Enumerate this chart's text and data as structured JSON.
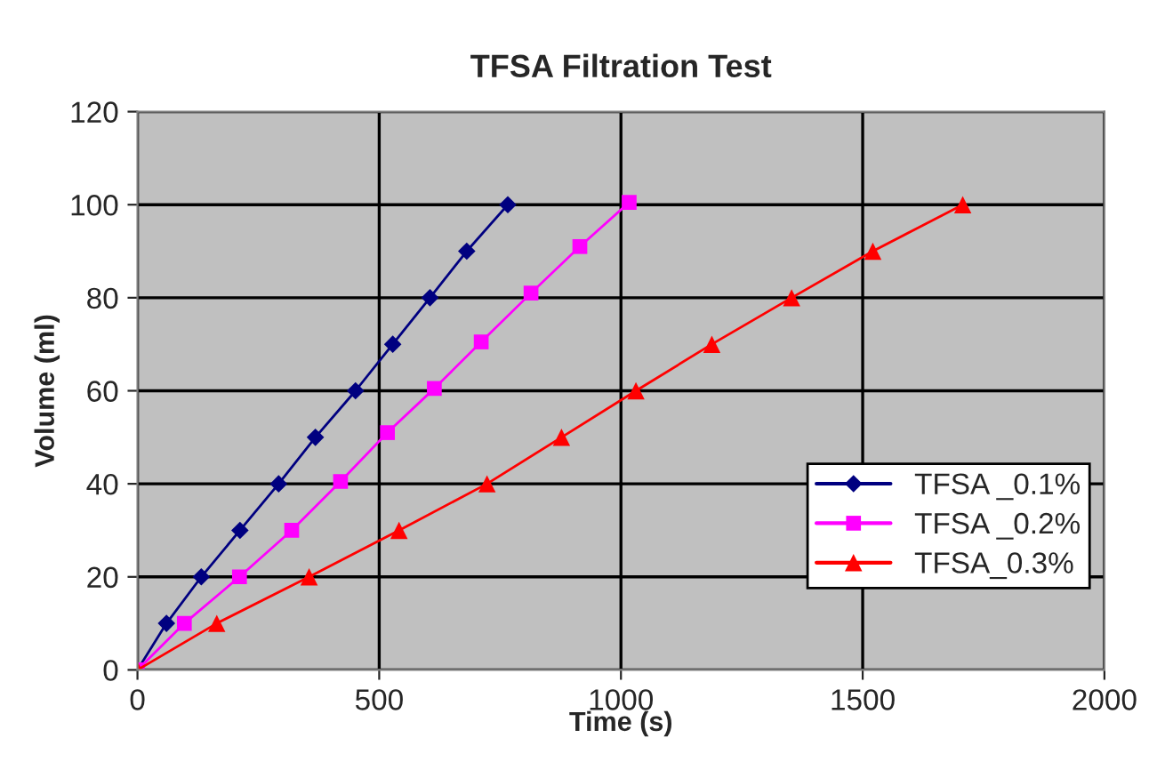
{
  "chart_data": {
    "type": "line",
    "title": "TFSA Filtration Test",
    "xlabel": "Time (s)",
    "ylabel": "Volume (ml)",
    "xlim": [
      0,
      2000
    ],
    "xticks": [
      0,
      500,
      1000,
      1500,
      2000
    ],
    "ylim": [
      0,
      120
    ],
    "yticks": [
      0,
      20,
      40,
      60,
      80,
      100,
      120
    ],
    "grid": true,
    "legend": "right",
    "series": [
      {
        "name": "TFSA _0.1%",
        "color": "#000080",
        "marker": "diamond",
        "x": [
          0,
          60,
          132,
          212,
          292,
          368,
          451,
          528,
          605,
          681,
          766
        ],
        "values": [
          0,
          10,
          20,
          30,
          40,
          50,
          60,
          70,
          80,
          90,
          100
        ]
      },
      {
        "name": "TFSA _0.2%",
        "color": "#ff00ff",
        "marker": "square",
        "x": [
          0,
          97,
          211,
          319,
          420,
          517,
          614,
          711,
          814,
          915,
          1017
        ],
        "values": [
          0,
          10,
          20,
          30,
          40.5,
          51,
          60.5,
          70.5,
          81,
          91,
          100.5
        ]
      },
      {
        "name": "TFSA_0.3%",
        "color": "#ff0000",
        "marker": "triangle",
        "x": [
          0,
          164,
          355,
          541,
          723,
          877,
          1031,
          1188,
          1353,
          1521,
          1707
        ],
        "values": [
          0,
          10,
          20,
          30,
          40,
          50,
          60,
          70,
          80,
          90,
          100
        ]
      }
    ]
  }
}
